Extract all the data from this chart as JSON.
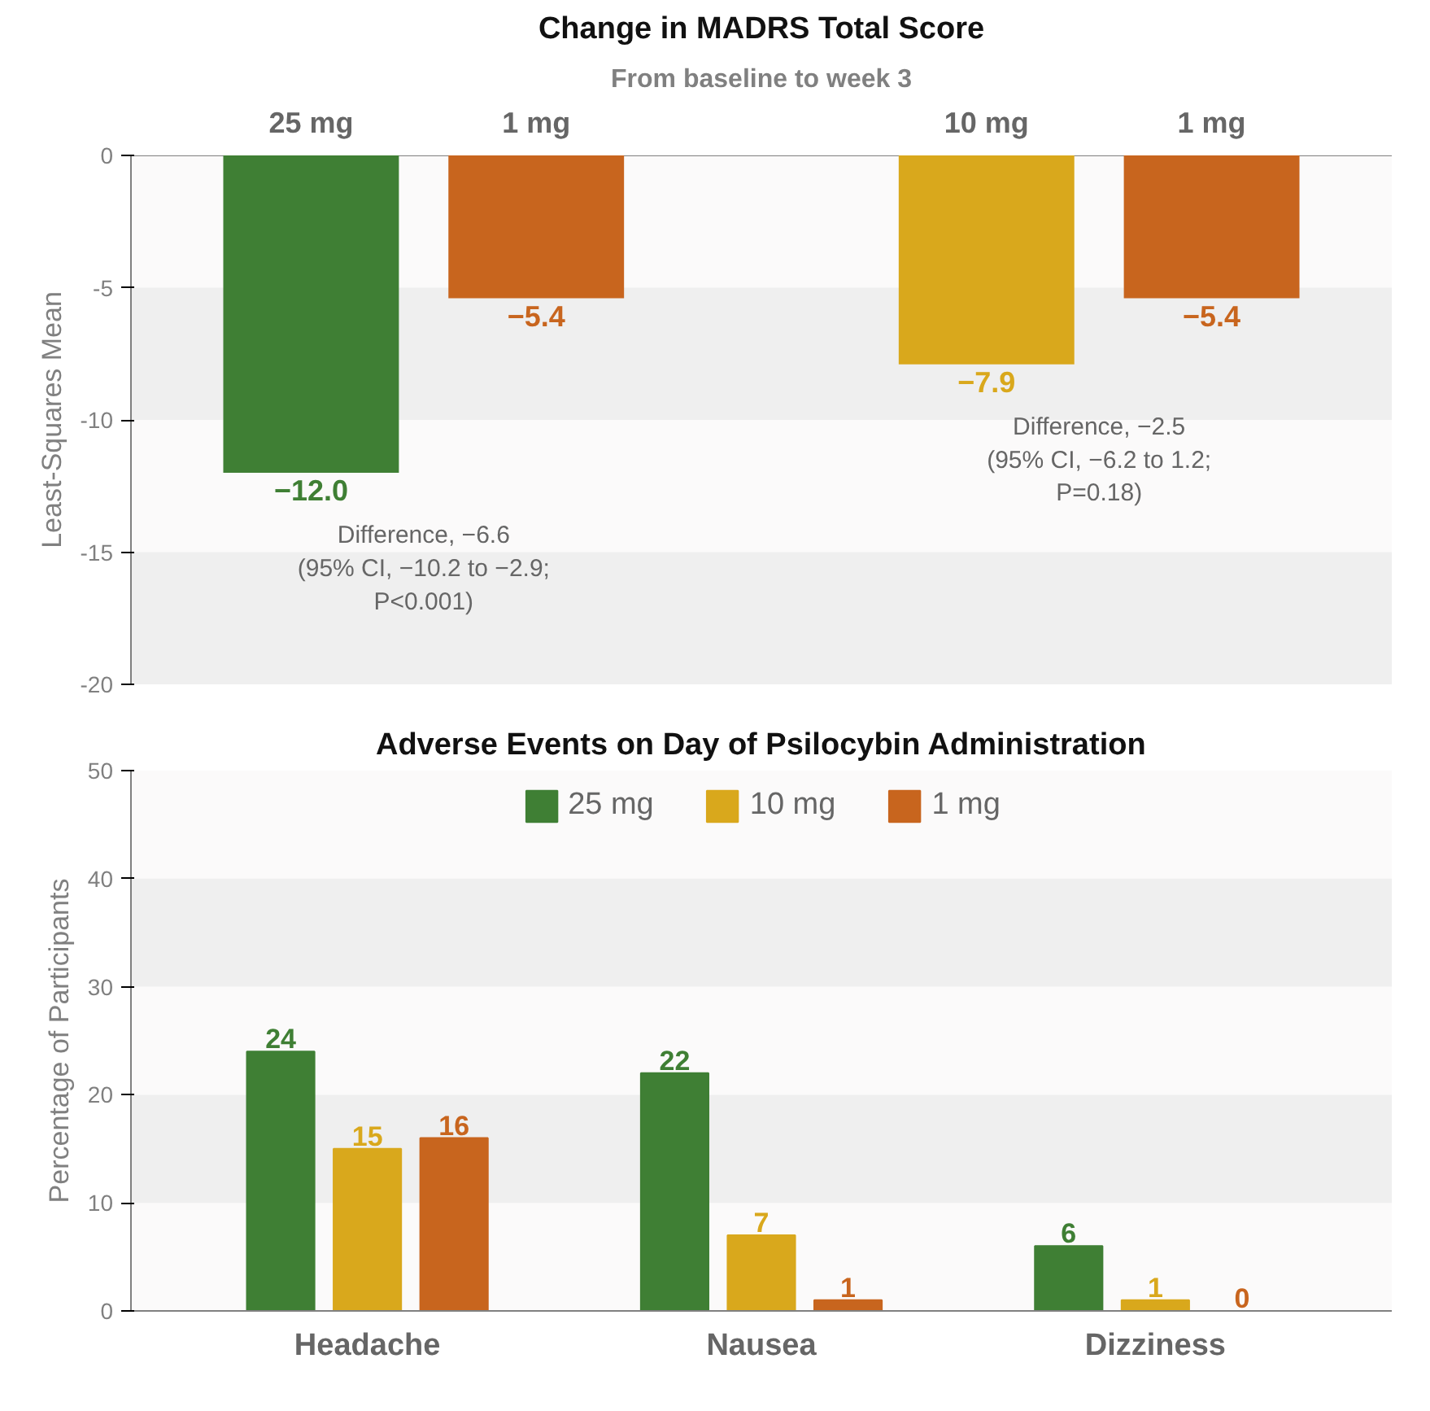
{
  "chart_data": [
    {
      "type": "bar",
      "title": "Change in MADRS Total Score",
      "subtitle": "From baseline to week 3",
      "ylabel": "Least-Squares Mean",
      "categories": [
        "25 mg",
        "1 mg",
        null,
        "10 mg",
        "1 mg"
      ],
      "values": [
        -12.0,
        -5.4,
        null,
        -7.9,
        -5.4
      ],
      "colors": [
        "#3f7f34",
        "#c8651e",
        "#cccccc",
        "#d9a81c",
        "#c8651e"
      ],
      "value_labels": [
        "−12.0",
        "−5.4",
        null,
        "−7.9",
        "−5.4"
      ],
      "ylim": [
        -20,
        0
      ],
      "yticks": [
        0,
        -5,
        -10,
        -15,
        -20
      ],
      "bands": [
        {
          "axis": "y",
          "from": -10,
          "to": -5,
          "color": "#efefef"
        },
        {
          "axis": "y",
          "from": -20,
          "to": -15,
          "color": "#efefef"
        }
      ],
      "annotations": [
        "Difference, −6.6\n(95% CI, −10.2 to −2.9;\nP<0.001)",
        "Difference, −2.5\n(95% CI, −6.2 to 1.2;\nP=0.18)"
      ]
    },
    {
      "type": "bar",
      "title": "Adverse Events on Day of Psilocybin Administration",
      "ylabel": "Percentage of Participants",
      "categories": [
        "Headache",
        "Nausea",
        "Dizziness"
      ],
      "series": [
        {
          "name": "25 mg",
          "color": "#3f7f34",
          "values": [
            24,
            22,
            6
          ]
        },
        {
          "name": "10 mg",
          "color": "#d9a81c",
          "values": [
            15,
            7,
            1
          ]
        },
        {
          "name": "1 mg",
          "color": "#c8651e",
          "values": [
            16,
            1,
            0
          ]
        }
      ],
      "data_labels": true,
      "legend": "top",
      "ylim": [
        0,
        50
      ],
      "yticks": [
        0,
        10,
        20,
        30,
        40,
        50
      ],
      "bands": [
        {
          "axis": "y",
          "from": 30,
          "to": 40,
          "color": "#efefef"
        },
        {
          "axis": "y",
          "from": 10,
          "to": 20,
          "color": "#efefef"
        }
      ]
    }
  ]
}
